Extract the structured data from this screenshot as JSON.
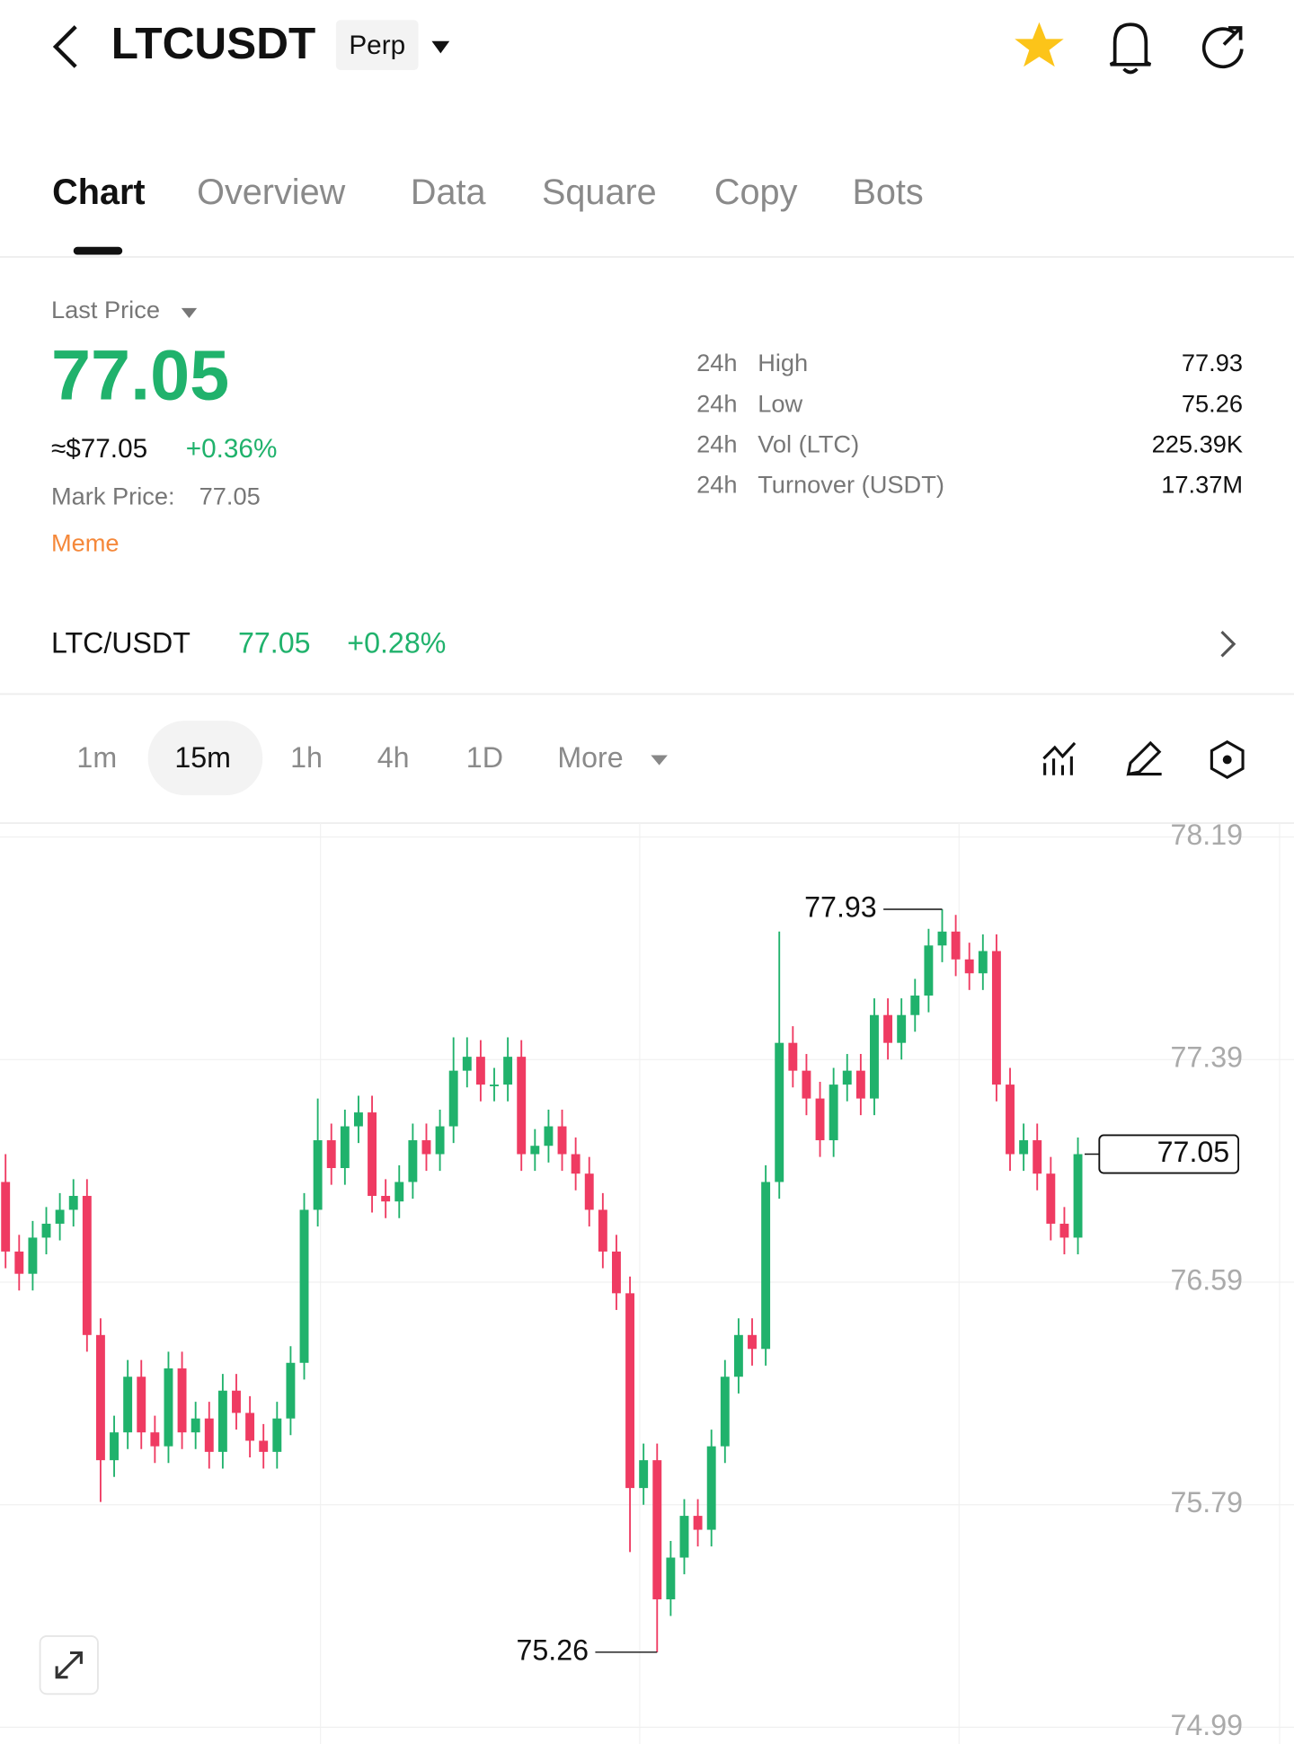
{
  "header": {
    "symbol": "LTCUSDT",
    "badge": "Perp"
  },
  "tabs": [
    "Chart",
    "Overview",
    "Data",
    "Square",
    "Copy",
    "Bots"
  ],
  "price": {
    "label": "Last Price",
    "value": "77.05",
    "fiat": "≈$77.05",
    "change": "+0.36%",
    "mark_label": "Mark Price:",
    "mark_value": "77.05",
    "tag": "Meme"
  },
  "stats": [
    {
      "period": "24h",
      "name": "High",
      "value": "77.93"
    },
    {
      "period": "24h",
      "name": "Low",
      "value": "75.26"
    },
    {
      "period": "24h",
      "name": "Vol (LTC)",
      "value": "225.39K"
    },
    {
      "period": "24h",
      "name": "Turnover (USDT)",
      "value": "17.37M"
    }
  ],
  "spot": {
    "pair": "LTC/USDT",
    "price": "77.05",
    "change": "+0.28%"
  },
  "intervals": [
    "1m",
    "15m",
    "1h",
    "4h",
    "1D",
    "More"
  ],
  "chart_data": {
    "type": "candlestick",
    "up_color": "#20b26c",
    "down_color": "#ef3b62",
    "open": [
      76.95,
      76.7,
      76.62,
      76.75,
      76.8,
      76.85,
      76.9,
      76.4,
      75.95,
      76.05,
      76.25,
      76.05,
      76.0,
      76.28,
      76.05,
      76.1,
      75.98,
      76.2,
      76.12,
      76.02,
      75.98,
      76.1,
      76.3,
      76.85,
      77.1,
      77.0,
      77.15,
      77.2,
      76.9,
      76.88,
      76.95,
      77.1,
      77.05,
      77.15,
      77.35,
      77.4,
      77.3,
      77.3,
      77.4,
      77.05,
      77.08,
      77.15,
      77.05,
      76.98,
      76.85,
      76.7,
      76.55,
      75.85,
      75.95,
      75.45,
      75.6,
      75.75,
      75.7,
      76.0,
      76.25,
      76.4,
      76.35,
      76.95,
      77.45,
      77.35,
      77.25,
      77.1,
      77.3,
      77.35,
      77.25,
      77.55,
      77.45,
      77.55,
      77.62,
      77.8,
      77.85,
      77.75,
      77.7,
      77.78,
      77.3,
      77.05,
      77.1,
      76.98,
      76.8,
      76.75
    ],
    "high": [
      77.05,
      76.76,
      76.81,
      76.86,
      76.91,
      76.96,
      76.96,
      76.46,
      76.11,
      76.31,
      76.31,
      76.11,
      76.34,
      76.34,
      76.16,
      76.16,
      76.26,
      76.26,
      76.18,
      76.08,
      76.16,
      76.36,
      76.91,
      77.25,
      77.16,
      77.21,
      77.26,
      77.26,
      76.96,
      77.01,
      77.16,
      77.16,
      77.21,
      77.47,
      77.47,
      77.46,
      77.36,
      77.47,
      77.46,
      77.14,
      77.21,
      77.21,
      77.11,
      77.04,
      76.91,
      76.76,
      76.61,
      76.01,
      76.01,
      75.66,
      75.81,
      75.81,
      76.06,
      76.31,
      76.46,
      76.46,
      77.01,
      77.85,
      77.51,
      77.41,
      77.31,
      77.36,
      77.41,
      77.41,
      77.61,
      77.61,
      77.61,
      77.68,
      77.86,
      77.93,
      77.91,
      77.81,
      77.84,
      77.84,
      77.36,
      77.16,
      77.16,
      77.04,
      76.86,
      77.11
    ],
    "low": [
      76.64,
      76.56,
      76.56,
      76.69,
      76.74,
      76.79,
      76.34,
      75.8,
      75.89,
      75.99,
      75.99,
      75.94,
      75.94,
      75.99,
      75.99,
      75.92,
      75.92,
      76.06,
      75.96,
      75.92,
      75.92,
      76.04,
      76.24,
      76.79,
      76.94,
      76.94,
      77.09,
      76.84,
      76.82,
      76.82,
      76.89,
      76.99,
      76.99,
      77.09,
      77.29,
      77.24,
      77.24,
      77.24,
      76.99,
      76.99,
      77.02,
      76.99,
      76.92,
      76.79,
      76.64,
      76.49,
      75.62,
      75.79,
      75.26,
      75.39,
      75.54,
      75.64,
      75.64,
      75.94,
      76.19,
      76.29,
      76.29,
      76.89,
      77.29,
      77.19,
      77.04,
      77.04,
      77.24,
      77.19,
      77.19,
      77.39,
      77.39,
      77.49,
      77.56,
      77.74,
      77.69,
      77.64,
      77.64,
      77.24,
      76.99,
      76.99,
      76.92,
      76.74,
      76.69,
      76.69
    ],
    "close": [
      76.7,
      76.62,
      76.75,
      76.8,
      76.85,
      76.9,
      76.4,
      75.95,
      76.05,
      76.25,
      76.05,
      76.0,
      76.28,
      76.05,
      76.1,
      75.98,
      76.2,
      76.12,
      76.02,
      75.98,
      76.1,
      76.3,
      76.85,
      77.1,
      77.0,
      77.15,
      77.2,
      76.9,
      76.88,
      76.95,
      77.1,
      77.05,
      77.15,
      77.35,
      77.4,
      77.3,
      77.3,
      77.4,
      77.05,
      77.08,
      77.15,
      77.05,
      76.98,
      76.85,
      76.7,
      76.55,
      75.85,
      75.95,
      75.45,
      75.6,
      75.75,
      75.7,
      76.0,
      76.25,
      76.4,
      76.35,
      76.95,
      77.45,
      77.35,
      77.25,
      77.1,
      77.3,
      77.35,
      77.25,
      77.55,
      77.45,
      77.55,
      77.62,
      77.8,
      77.85,
      77.75,
      77.7,
      77.78,
      77.3,
      77.05,
      77.1,
      76.98,
      76.8,
      76.75,
      77.05
    ],
    "ylim": [
      74.93,
      78.24
    ],
    "yticks": [
      78.19,
      77.39,
      76.59,
      75.79,
      74.99
    ],
    "grid": true,
    "annotations": {
      "high": 77.93,
      "low": 75.26,
      "last": 77.05
    }
  }
}
